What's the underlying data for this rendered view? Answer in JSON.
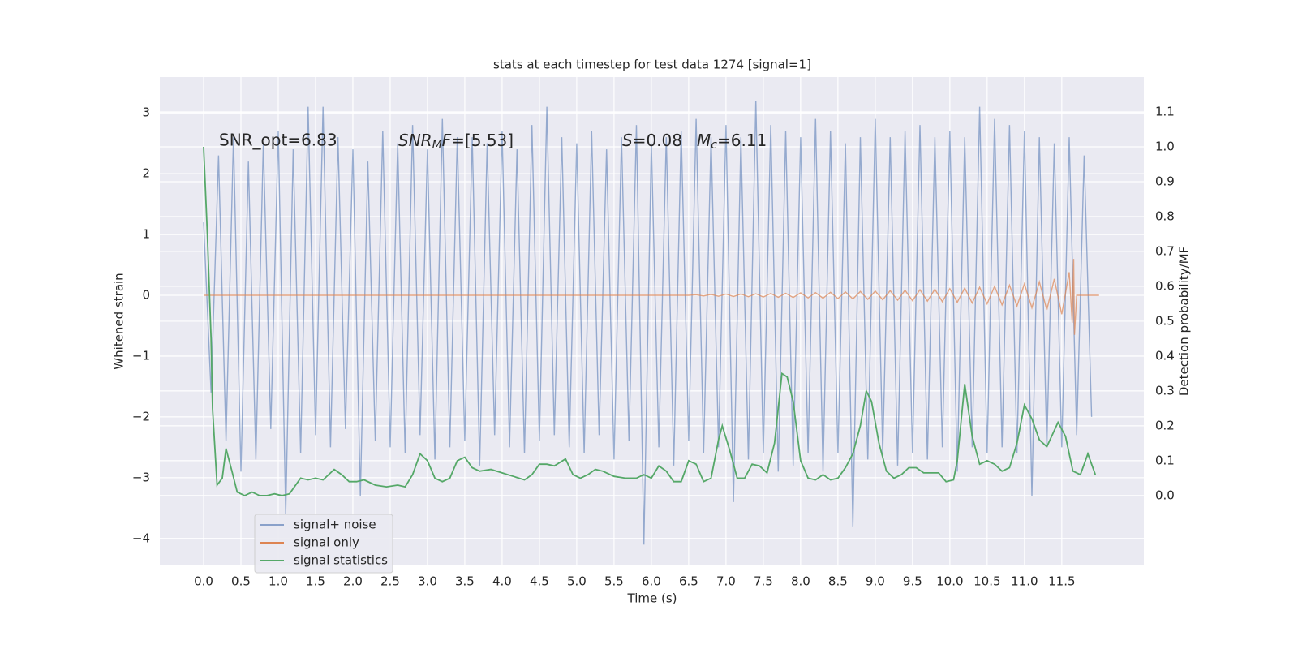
{
  "chart_data": {
    "type": "line",
    "title": "stats at each timestep for test data 1274 [signal=1]",
    "xlabel": "Time (s)",
    "ylabel": "Whitened strain",
    "y2label": "Detection probability/MF",
    "annotations": [
      {
        "text": "SNR_opt=6.83"
      },
      {
        "italic": "SNR",
        "sub": "M",
        "italic2": "F",
        "rest": "=[5.53]"
      },
      {
        "italic": "S",
        "rest": "=0.08"
      },
      {
        "italic": "M",
        "sub": "c",
        "rest": "=6.11"
      }
    ],
    "xlim": [
      -0.587,
      12.6
    ],
    "ylim": [
      -4.43,
      3.59
    ],
    "y2lim": [
      -0.198,
      1.2
    ],
    "xticks": [
      {
        "value": 0,
        "label": "0.0"
      },
      0.5,
      {
        "value": 1,
        "label": "1.0"
      },
      1.5,
      {
        "value": 2,
        "label": "2.0"
      },
      2.5,
      {
        "value": 3,
        "label": "3.0"
      },
      3.5,
      {
        "value": 4,
        "label": "4.0"
      },
      4.5,
      {
        "value": 5,
        "label": "5.0"
      },
      5.5,
      {
        "value": 6,
        "label": "6.0"
      },
      6.5,
      {
        "value": 7,
        "label": "7.0"
      },
      7.5,
      {
        "value": 8,
        "label": "8.0"
      },
      8.5,
      {
        "value": 9,
        "label": "9.0"
      },
      9.5,
      {
        "value": 10,
        "label": "10.0"
      },
      10.5,
      {
        "value": 11,
        "label": "11.0"
      },
      11.5
    ],
    "yticks": [
      {
        "value": -4,
        "label": "−4"
      },
      {
        "value": -3,
        "label": "−3"
      },
      {
        "value": -2,
        "label": "−2"
      },
      {
        "value": -1,
        "label": "−1"
      },
      0,
      1,
      2,
      3
    ],
    "y2ticks": [
      {
        "value": 0,
        "label": "0.0"
      },
      0.1,
      0.2,
      0.3,
      0.4,
      0.5,
      0.6,
      0.7,
      0.8,
      0.9,
      {
        "value": 1,
        "label": "1.0"
      },
      1.1
    ],
    "grid": true,
    "legend": "lower left",
    "series": [
      {
        "name": "signal+ noise",
        "color": "#4c72b0",
        "x": [
          0,
          0.1,
          0.2,
          0.3,
          0.4,
          0.5,
          0.6,
          0.7,
          0.8,
          0.9,
          1,
          1.1,
          1.2,
          1.3,
          1.4,
          1.5,
          1.6,
          1.7,
          1.8,
          1.9,
          2,
          2.1,
          2.2,
          2.3,
          2.4,
          2.5,
          2.6,
          2.7,
          2.8,
          2.9,
          3,
          3.1,
          3.2,
          3.3,
          3.4,
          3.5,
          3.6,
          3.7,
          3.8,
          3.9,
          4,
          4.1,
          4.2,
          4.3,
          4.4,
          4.5,
          4.6,
          4.7,
          4.8,
          4.9,
          5,
          5.1,
          5.2,
          5.3,
          5.4,
          5.5,
          5.6,
          5.7,
          5.8,
          5.9,
          6,
          6.1,
          6.2,
          6.3,
          6.4,
          6.5,
          6.6,
          6.7,
          6.8,
          6.9,
          7,
          7.1,
          7.2,
          7.3,
          7.4,
          7.5,
          7.6,
          7.7,
          7.8,
          7.9,
          8,
          8.1,
          8.2,
          8.3,
          8.4,
          8.5,
          8.6,
          8.7,
          8.8,
          8.9,
          9,
          9.1,
          9.2,
          9.3,
          9.4,
          9.5,
          9.6,
          9.7,
          9.8,
          9.9,
          10,
          10.1,
          10.2,
          10.3,
          10.4,
          10.5,
          10.6,
          10.7,
          10.8,
          10.9,
          11,
          11.1,
          11.2,
          11.3,
          11.4,
          11.5,
          11.6,
          11.7,
          11.8,
          11.9
        ],
        "values": [
          1.2,
          -1.6,
          2.3,
          -2.4,
          2.6,
          -2.9,
          2.2,
          -2.7,
          2.5,
          -2.2,
          2.7,
          -3.6,
          2.4,
          -2.6,
          3.1,
          -2.3,
          3.1,
          -2.5,
          2.6,
          -2.2,
          2.4,
          -3.3,
          2.2,
          -2.4,
          2.7,
          -2.5,
          2.5,
          -2.6,
          2.8,
          -2.3,
          2.4,
          -2.7,
          2.9,
          -2.5,
          2.6,
          -2.4,
          2.6,
          -2.8,
          2.5,
          -2.3,
          2.7,
          -2.5,
          2.4,
          -2.6,
          2.8,
          -2.4,
          3.1,
          -2.3,
          2.6,
          -2.5,
          2.5,
          -2.6,
          2.7,
          -2.3,
          2.4,
          -2.7,
          2.6,
          -2.4,
          2.8,
          -4.1,
          2.5,
          -2.5,
          2.6,
          -2.8,
          2.7,
          -2.4,
          2.9,
          -2.6,
          2.6,
          -2.5,
          2.8,
          -3.4,
          2.6,
          -2.7,
          3.2,
          -2.6,
          2.8,
          -2.9,
          2.7,
          -2.8,
          2.6,
          -2.6,
          2.9,
          -2.9,
          2.7,
          -2.6,
          2.5,
          -3.8,
          2.6,
          -2.7,
          2.9,
          -2.6,
          2.6,
          -2.8,
          2.7,
          -2.6,
          2.8,
          -2.7,
          2.6,
          -2.5,
          2.7,
          -2.9,
          2.6,
          -2.5,
          3.1,
          -2.6,
          2.9,
          -2.5,
          2.8,
          -2.6,
          2.7,
          -3.3,
          2.6,
          -2.5,
          2.5,
          -2.5,
          2.6,
          -2.3,
          2.3,
          -2.0
        ]
      },
      {
        "name": "signal only",
        "color": "#dd8452",
        "x": [
          0,
          6.5,
          6.6,
          6.7,
          6.8,
          6.9,
          7,
          7.1,
          7.2,
          7.3,
          7.4,
          7.5,
          7.6,
          7.7,
          7.8,
          7.9,
          8,
          8.1,
          8.2,
          8.3,
          8.4,
          8.5,
          8.6,
          8.7,
          8.8,
          8.9,
          9,
          9.1,
          9.2,
          9.3,
          9.4,
          9.5,
          9.6,
          9.7,
          9.8,
          9.9,
          10,
          10.1,
          10.2,
          10.3,
          10.4,
          10.5,
          10.6,
          10.7,
          10.8,
          10.9,
          11,
          11.1,
          11.2,
          11.3,
          11.4,
          11.5,
          11.6,
          11.64,
          11.66,
          11.67,
          11.7,
          12
        ],
        "values": [
          0,
          0,
          0.01,
          -0.01,
          0.015,
          -0.015,
          0.02,
          -0.02,
          0.022,
          -0.024,
          0.026,
          -0.028,
          0.03,
          -0.032,
          0.034,
          -0.036,
          0.04,
          -0.042,
          0.045,
          -0.048,
          0.05,
          -0.053,
          0.056,
          -0.06,
          0.063,
          -0.066,
          0.07,
          -0.073,
          0.077,
          -0.08,
          0.084,
          -0.088,
          0.092,
          -0.096,
          0.1,
          -0.105,
          0.11,
          -0.115,
          0.12,
          -0.126,
          0.132,
          -0.14,
          0.148,
          -0.157,
          0.167,
          -0.178,
          0.19,
          -0.205,
          0.22,
          -0.24,
          0.27,
          -0.31,
          0.38,
          -0.45,
          0.6,
          -0.65,
          0,
          0
        ]
      },
      {
        "name": "signal statistics",
        "color": "#55a868",
        "axis": "y2",
        "x": [
          0,
          0.05,
          0.1,
          0.12,
          0.18,
          0.25,
          0.3,
          0.38,
          0.45,
          0.55,
          0.65,
          0.75,
          0.85,
          0.95,
          1.05,
          1.15,
          1.3,
          1.4,
          1.5,
          1.6,
          1.75,
          1.85,
          1.95,
          2.05,
          2.15,
          2.3,
          2.45,
          2.6,
          2.7,
          2.8,
          2.9,
          3,
          3.1,
          3.2,
          3.3,
          3.4,
          3.5,
          3.6,
          3.7,
          3.85,
          4,
          4.15,
          4.3,
          4.4,
          4.5,
          4.6,
          4.7,
          4.85,
          4.95,
          5.05,
          5.15,
          5.25,
          5.35,
          5.5,
          5.65,
          5.8,
          5.9,
          6,
          6.1,
          6.2,
          6.3,
          6.4,
          6.5,
          6.6,
          6.7,
          6.8,
          6.9,
          6.95,
          7.05,
          7.15,
          7.25,
          7.35,
          7.45,
          7.55,
          7.65,
          7.75,
          7.82,
          7.9,
          8,
          8.1,
          8.2,
          8.3,
          8.4,
          8.5,
          8.6,
          8.7,
          8.8,
          8.88,
          8.95,
          9.05,
          9.15,
          9.25,
          9.35,
          9.45,
          9.55,
          9.65,
          9.75,
          9.85,
          9.95,
          10.05,
          10.1,
          10.2,
          10.3,
          10.4,
          10.5,
          10.6,
          10.7,
          10.8,
          10.9,
          11,
          11.1,
          11.2,
          11.3,
          11.45,
          11.55,
          11.65,
          11.75,
          11.85,
          11.95
        ],
        "values": [
          1,
          0.75,
          0.45,
          0.25,
          0.03,
          0.05,
          0.135,
          0.07,
          0.01,
          0,
          0.01,
          0,
          0,
          0.005,
          0,
          0.005,
          0.05,
          0.045,
          0.05,
          0.045,
          0.075,
          0.06,
          0.04,
          0.04,
          0.045,
          0.03,
          0.025,
          0.03,
          0.025,
          0.06,
          0.12,
          0.1,
          0.05,
          0.04,
          0.05,
          0.1,
          0.11,
          0.08,
          0.07,
          0.075,
          0.065,
          0.055,
          0.045,
          0.06,
          0.09,
          0.09,
          0.085,
          0.105,
          0.06,
          0.05,
          0.06,
          0.075,
          0.07,
          0.055,
          0.05,
          0.05,
          0.06,
          0.05,
          0.085,
          0.07,
          0.04,
          0.04,
          0.1,
          0.09,
          0.04,
          0.05,
          0.16,
          0.2,
          0.13,
          0.05,
          0.05,
          0.09,
          0.085,
          0.065,
          0.15,
          0.35,
          0.34,
          0.27,
          0.1,
          0.05,
          0.045,
          0.06,
          0.045,
          0.05,
          0.08,
          0.12,
          0.2,
          0.3,
          0.27,
          0.15,
          0.07,
          0.05,
          0.06,
          0.08,
          0.08,
          0.065,
          0.065,
          0.065,
          0.04,
          0.045,
          0.1,
          0.32,
          0.17,
          0.09,
          0.1,
          0.09,
          0.07,
          0.08,
          0.15,
          0.26,
          0.22,
          0.16,
          0.14,
          0.21,
          0.17,
          0.07,
          0.06,
          0.12,
          0.06
        ]
      }
    ]
  }
}
